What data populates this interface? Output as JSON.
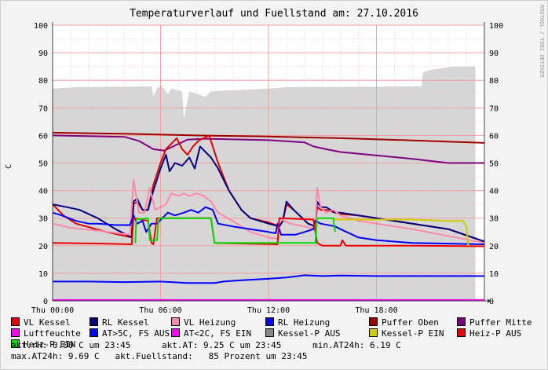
{
  "chart_data": {
    "type": "line",
    "title": "Temperaturverlauf und Fuellstand am: 27.10.2016",
    "ylabel": "C",
    "side_label": "RRDTOOL / TOBI OETIKER",
    "ylim": [
      0,
      100
    ],
    "xlim": [
      0,
      24
    ],
    "yticks": [
      0,
      10,
      20,
      30,
      40,
      50,
      60,
      70,
      80,
      90,
      100
    ],
    "xticks": [
      {
        "x": 0,
        "label": "Thu 00:00"
      },
      {
        "x": 6,
        "label": "Thu 06:00"
      },
      {
        "x": 12,
        "label": "Thu 12:00"
      },
      {
        "x": 18,
        "label": "Thu 18:00"
      }
    ],
    "grid": true,
    "legend_position": "bottom",
    "series": [
      {
        "name": "Fuellstand (Kessel-P AUS)",
        "color": "#d6d6d6",
        "fill": true,
        "points": [
          [
            0,
            77
          ],
          [
            1.3,
            77.5
          ],
          [
            5.5,
            77.8
          ],
          [
            5.6,
            74
          ],
          [
            5.8,
            77
          ],
          [
            6.0,
            78
          ],
          [
            6.2,
            77
          ],
          [
            6.4,
            75
          ],
          [
            6.6,
            77
          ],
          [
            7.2,
            76
          ],
          [
            7.3,
            66
          ],
          [
            7.6,
            76
          ],
          [
            8.5,
            74
          ],
          [
            8.8,
            76
          ],
          [
            12,
            77
          ],
          [
            13,
            77.5
          ],
          [
            20.5,
            77.8
          ],
          [
            20.6,
            83
          ],
          [
            21.2,
            84
          ],
          [
            22.3,
            85
          ],
          [
            23.5,
            85
          ]
        ]
      },
      {
        "name": "Puffer Oben",
        "color": "#a00000",
        "points": [
          [
            0,
            61
          ],
          [
            4,
            60.6
          ],
          [
            8,
            60
          ],
          [
            12,
            59.6
          ],
          [
            16,
            59
          ],
          [
            20,
            58.2
          ],
          [
            24,
            57.3
          ]
        ]
      },
      {
        "name": "Puffer Mitte",
        "color": "#800080",
        "points": [
          [
            0,
            60
          ],
          [
            4,
            59.5
          ],
          [
            4.8,
            58
          ],
          [
            5.6,
            55
          ],
          [
            6.2,
            54.5
          ],
          [
            6.7,
            56
          ],
          [
            7.5,
            58.5
          ],
          [
            8.5,
            58.8
          ],
          [
            12,
            58.3
          ],
          [
            14,
            57.5
          ],
          [
            14.5,
            56
          ],
          [
            15.2,
            55
          ],
          [
            16,
            54
          ],
          [
            20,
            51.5
          ],
          [
            22,
            50
          ],
          [
            24,
            50
          ]
        ]
      },
      {
        "name": "VL Kessel",
        "color": "#e00000",
        "points": [
          [
            0,
            35
          ],
          [
            0.6,
            31
          ],
          [
            1.3,
            28
          ],
          [
            3,
            25
          ],
          [
            4.4,
            23
          ],
          [
            4.5,
            35
          ],
          [
            4.7,
            36
          ],
          [
            5.0,
            33
          ],
          [
            5.3,
            33
          ],
          [
            5.6,
            42
          ],
          [
            6.0,
            50
          ],
          [
            6.3,
            55
          ],
          [
            6.6,
            57
          ],
          [
            6.9,
            59
          ],
          [
            7.2,
            55
          ],
          [
            7.5,
            53
          ],
          [
            7.8,
            56
          ],
          [
            8.1,
            58
          ],
          [
            8.4,
            59
          ],
          [
            8.7,
            60
          ],
          [
            9.2,
            50
          ],
          [
            9.8,
            40
          ],
          [
            10.5,
            33
          ],
          [
            11,
            30
          ],
          [
            12,
            28.5
          ],
          [
            12.6,
            27
          ],
          [
            12.8,
            29
          ],
          [
            13,
            35
          ],
          [
            13.4,
            33
          ],
          [
            14.2,
            28
          ],
          [
            14.6,
            27
          ],
          [
            14.7,
            34
          ],
          [
            14.9,
            33
          ],
          [
            15.2,
            33
          ],
          [
            15.7,
            32
          ],
          [
            16,
            31.5
          ],
          [
            17,
            31
          ],
          [
            18,
            30
          ],
          [
            20,
            28
          ],
          [
            22,
            26
          ],
          [
            24,
            21.5
          ]
        ]
      },
      {
        "name": "RL Kessel",
        "color": "#000080",
        "points": [
          [
            0,
            35
          ],
          [
            0.8,
            34
          ],
          [
            1.5,
            33
          ],
          [
            2.5,
            30
          ],
          [
            3.5,
            26
          ],
          [
            4.4,
            23
          ],
          [
            4.5,
            36
          ],
          [
            4.7,
            37
          ],
          [
            5.0,
            33
          ],
          [
            5.3,
            33
          ],
          [
            5.6,
            40
          ],
          [
            6.0,
            48
          ],
          [
            6.3,
            53
          ],
          [
            6.5,
            47
          ],
          [
            6.8,
            50
          ],
          [
            7.2,
            49
          ],
          [
            7.6,
            52
          ],
          [
            7.9,
            48
          ],
          [
            8.2,
            56
          ],
          [
            8.5,
            54
          ],
          [
            8.8,
            52
          ],
          [
            9.2,
            48
          ],
          [
            9.8,
            40
          ],
          [
            10.5,
            33
          ],
          [
            11,
            30
          ],
          [
            12,
            28
          ],
          [
            12.6,
            27
          ],
          [
            12.8,
            29
          ],
          [
            13,
            36
          ],
          [
            13.4,
            33
          ],
          [
            14.2,
            28
          ],
          [
            14.6,
            27
          ],
          [
            14.7,
            36
          ],
          [
            14.9,
            34
          ],
          [
            15.2,
            34
          ],
          [
            15.7,
            32
          ],
          [
            16,
            32
          ],
          [
            17,
            31
          ],
          [
            18,
            30
          ],
          [
            20,
            28
          ],
          [
            22,
            26
          ],
          [
            24,
            21.5
          ]
        ]
      },
      {
        "name": "VL Heizung",
        "color": "#ff88aa",
        "points": [
          [
            0,
            28
          ],
          [
            1,
            26.5
          ],
          [
            2.5,
            25.5
          ],
          [
            4.3,
            24
          ],
          [
            4.5,
            44
          ],
          [
            4.8,
            32
          ],
          [
            5.1,
            32
          ],
          [
            5.4,
            41
          ],
          [
            5.7,
            33
          ],
          [
            6.0,
            34
          ],
          [
            6.3,
            35
          ],
          [
            6.6,
            39
          ],
          [
            7.0,
            38
          ],
          [
            7.3,
            39
          ],
          [
            7.6,
            38
          ],
          [
            8.0,
            39
          ],
          [
            8.4,
            38
          ],
          [
            8.8,
            36
          ],
          [
            9.2,
            32
          ],
          [
            10,
            29
          ],
          [
            11,
            25
          ],
          [
            12,
            23
          ],
          [
            12.5,
            22.5
          ],
          [
            12.6,
            30
          ],
          [
            13.2,
            28
          ],
          [
            14,
            27
          ],
          [
            14.6,
            26
          ],
          [
            14.7,
            41
          ],
          [
            14.9,
            34
          ],
          [
            15.2,
            32
          ],
          [
            15.6,
            33
          ],
          [
            16,
            31
          ],
          [
            17,
            29
          ],
          [
            18,
            28
          ],
          [
            20,
            26
          ],
          [
            24,
            21
          ]
        ]
      },
      {
        "name": "RL Heizung",
        "color": "#0000ff",
        "points": [
          [
            0,
            32
          ],
          [
            0.5,
            31
          ],
          [
            1.3,
            29
          ],
          [
            2,
            28
          ],
          [
            2.5,
            28
          ],
          [
            3.5,
            27.5
          ],
          [
            4.3,
            27.5
          ],
          [
            4.5,
            31
          ],
          [
            4.7,
            28
          ],
          [
            5.0,
            29
          ],
          [
            5.2,
            25
          ],
          [
            5.5,
            28
          ],
          [
            5.8,
            28
          ],
          [
            6.1,
            30
          ],
          [
            6.4,
            32
          ],
          [
            6.8,
            31
          ],
          [
            7.3,
            32
          ],
          [
            7.7,
            33
          ],
          [
            8.1,
            32
          ],
          [
            8.5,
            34
          ],
          [
            8.9,
            33
          ],
          [
            9.2,
            28
          ],
          [
            10,
            27
          ],
          [
            11,
            26
          ],
          [
            12,
            25
          ],
          [
            12.4,
            24.5
          ],
          [
            12.5,
            28
          ],
          [
            12.7,
            24
          ],
          [
            13.5,
            24
          ],
          [
            14,
            25
          ],
          [
            14.5,
            26
          ],
          [
            14.6,
            29
          ],
          [
            14.9,
            28
          ],
          [
            15.7,
            27
          ],
          [
            16,
            26
          ],
          [
            17,
            23
          ],
          [
            18,
            22
          ],
          [
            20,
            21
          ],
          [
            24,
            20.5
          ]
        ]
      },
      {
        "name": "Heiz-P AUS",
        "color": "#ee0000",
        "points": [
          [
            0,
            21
          ],
          [
            2.5,
            20.8
          ],
          [
            4.4,
            20.5
          ],
          [
            4.5,
            30
          ],
          [
            5.3,
            29
          ],
          [
            5.5,
            21
          ],
          [
            5.6,
            20.5
          ],
          [
            5.8,
            30
          ],
          [
            8.8,
            30
          ],
          [
            9.0,
            21
          ],
          [
            12.5,
            20.5
          ],
          [
            12.6,
            30
          ],
          [
            14.5,
            29.5
          ],
          [
            14.7,
            21
          ],
          [
            15,
            20
          ],
          [
            16,
            20
          ],
          [
            16.1,
            22
          ],
          [
            16.3,
            20
          ],
          [
            20,
            20
          ],
          [
            24,
            19.8
          ]
        ]
      },
      {
        "name": "Kessel-P EIN",
        "color": "#cccc00",
        "points": [
          [
            15.6,
            29.5
          ],
          [
            20,
            29.5
          ],
          [
            22,
            29
          ],
          [
            22.8,
            29
          ],
          [
            23.0,
            27
          ],
          [
            23.1,
            20
          ]
        ]
      },
      {
        "name": "Heiz-P EIN",
        "color": "#00dd00",
        "points": [
          [
            4.6,
            21
          ],
          [
            4.65,
            29.5
          ],
          [
            5.3,
            30
          ],
          [
            5.4,
            22
          ],
          [
            5.8,
            22
          ],
          [
            5.9,
            30
          ],
          [
            8.8,
            30
          ],
          [
            9.0,
            21
          ],
          [
            14.6,
            21
          ],
          [
            14.7,
            30
          ],
          [
            15.6,
            30
          ],
          [
            15.7,
            25
          ]
        ]
      },
      {
        "name": "Luftfeuchte",
        "color": "#ff00ff",
        "points": [
          [
            0,
            0.3
          ],
          [
            24,
            0.3
          ]
        ]
      },
      {
        "name": "AT>5C, FS AUS",
        "color": "#0000ff",
        "points": [
          [
            0,
            7
          ],
          [
            2,
            7
          ],
          [
            4,
            6.8
          ],
          [
            6,
            7
          ],
          [
            7.5,
            6.5
          ],
          [
            9,
            6.5
          ],
          [
            9.5,
            7
          ],
          [
            10.5,
            7.5
          ],
          [
            12,
            8
          ],
          [
            13,
            8.5
          ],
          [
            14,
            9.3
          ],
          [
            15,
            9
          ],
          [
            16,
            9.2
          ],
          [
            18,
            9
          ],
          [
            20,
            9
          ],
          [
            24,
            9
          ]
        ]
      }
    ]
  },
  "legend": {
    "rows": [
      [
        {
          "label": "VL Kessel",
          "color": "#ee0000"
        },
        {
          "label": "RL Kessel",
          "color": "#000080"
        },
        {
          "label": "VL Heizung",
          "color": "#ff88aa"
        },
        {
          "label": "RL Heizung",
          "color": "#0000ff"
        },
        {
          "label": "Puffer Oben",
          "color": "#a00000"
        },
        {
          "label": "Puffer Mitte",
          "color": "#800080"
        }
      ],
      [
        {
          "label": "Luftfeuchte",
          "color": "#ff00ff"
        },
        {
          "label": "AT>5C, FS AUS",
          "color": "#0000ff"
        },
        {
          "label": "AT<2C, FS EIN",
          "color": "#ff00ff"
        },
        {
          "label": "Kessel-P AUS",
          "color": "#888888"
        },
        {
          "label": "Kessel-P EIN",
          "color": "#cccc00"
        },
        {
          "label": "Heiz-P AUS",
          "color": "#ee0000"
        }
      ],
      [
        {
          "label": "Heiz-P EIN",
          "color": "#00dd00"
        }
      ]
    ],
    "stat_line_1": "akt.rH: 0.00 C um 23:45      akt.AT: 9.25 C um 23:45      min.AT24h: 6.19 C",
    "stat_line_2": "max.AT24h: 9.69 C   akt.Fuellstand:   85 Prozent um 23:45"
  }
}
